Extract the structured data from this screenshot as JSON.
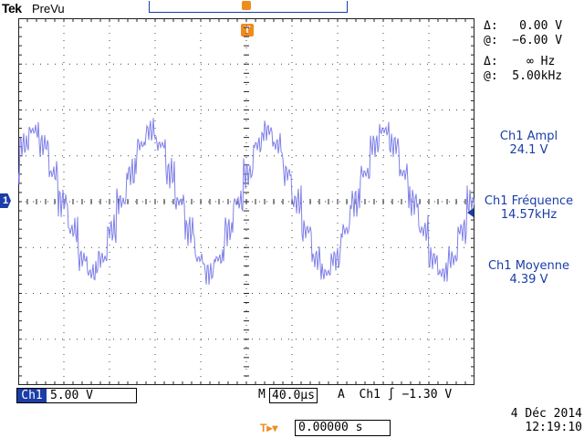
{
  "header": {
    "brand": "Tek",
    "acquisition_status": "PreVu"
  },
  "markers": {
    "trigger_marker_label": "T",
    "channel_ground_label": "1",
    "position_icon_label": "T▸▾"
  },
  "cursor_readout": {
    "delta_voltage": "Δ:   0.00 V",
    "at_voltage": "@:  −6.00 V",
    "delta_freq": "Δ:    ∞ Hz",
    "at_freq": "@:  5.00kHz"
  },
  "measurements": [
    {
      "label": "Ch1 Ampl",
      "value": "24.1 V"
    },
    {
      "label": "Ch1 Fréquence",
      "value": "14.57kHz"
    },
    {
      "label": "Ch1 Moyenne",
      "value": "4.39 V"
    }
  ],
  "channel_bar": {
    "channel": "Ch1",
    "scale": "5.00 V"
  },
  "timebase": {
    "prefix": "M",
    "value": "40.0µs"
  },
  "trigger": {
    "text": "A  Ch1 ",
    "slope_symbol": "∫",
    "level": " −1.30 V"
  },
  "horizontal_position": "0.00000 s",
  "datetime": {
    "date": "4 Déc  2014",
    "time": "12:19:10"
  },
  "colors": {
    "waveform": "#8080e8",
    "accent_blue": "#1a3da8",
    "trigger_orange": "#f08c1e",
    "grid": "#222222"
  }
}
